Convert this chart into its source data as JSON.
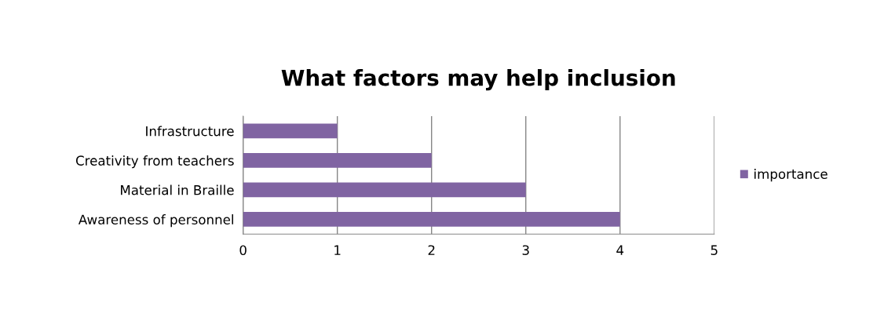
{
  "chart_data": {
    "type": "bar",
    "title": "What factors may help inclusion",
    "orientation": "horizontal",
    "categories": [
      "Infrastructure",
      "Creativity from teachers",
      "Material in Braille",
      "Awareness of personnel"
    ],
    "series": [
      {
        "name": "importance",
        "color": "#8064a2",
        "values": [
          1,
          2,
          3,
          4
        ]
      }
    ],
    "xlim": [
      0,
      5
    ],
    "xticks": [
      0,
      1,
      2,
      3,
      4,
      5
    ],
    "grid": "x",
    "legend": "right"
  }
}
